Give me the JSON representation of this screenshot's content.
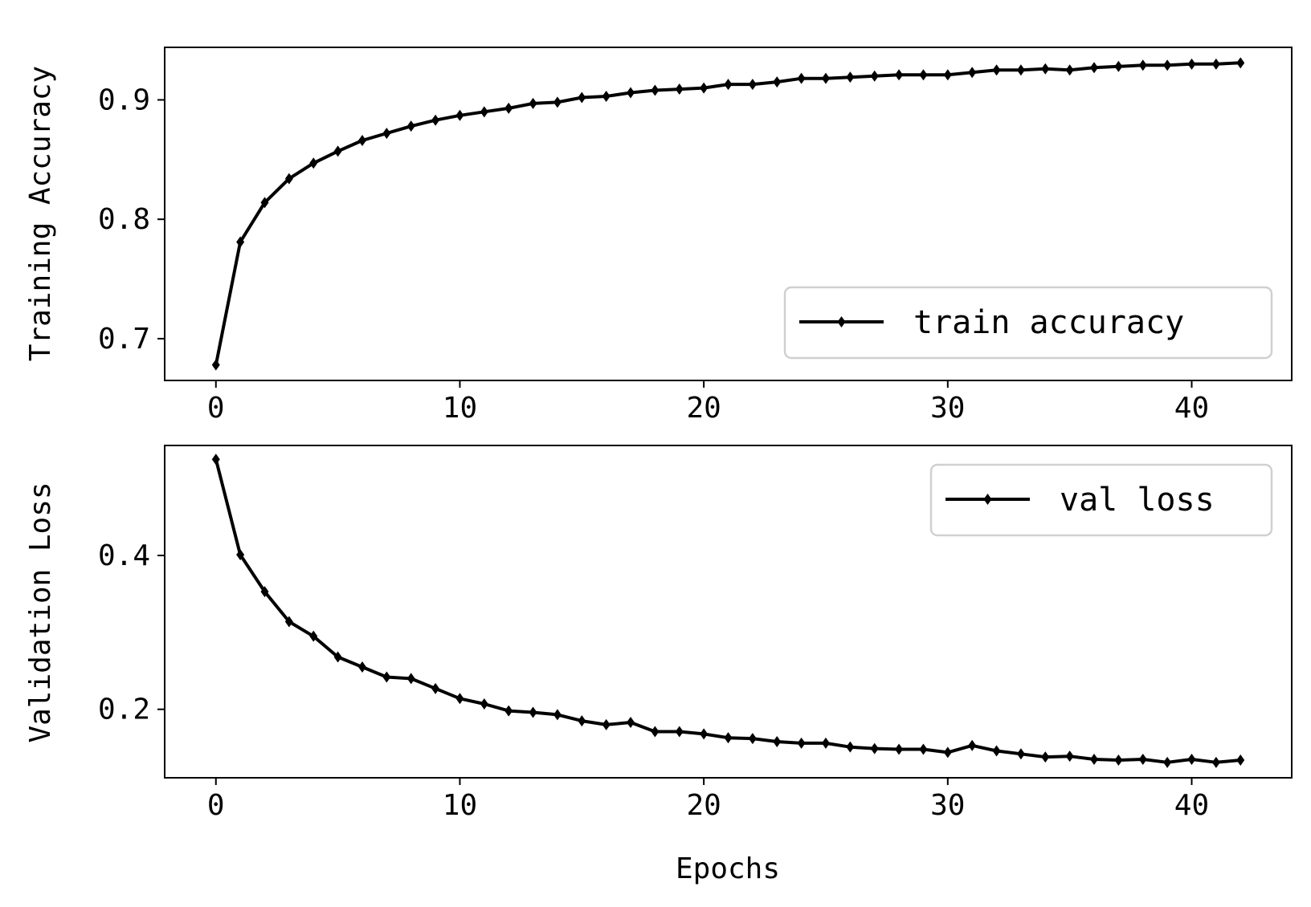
{
  "chart_data": [
    {
      "type": "line",
      "xlabel": "",
      "ylabel": "Training Accuracy",
      "xlim": [
        -2.1,
        44.1
      ],
      "ylim": [
        0.665,
        0.944
      ],
      "xticks": [
        0,
        10,
        20,
        30,
        40
      ],
      "xtick_labels": [
        "0",
        "10",
        "20",
        "30",
        "40"
      ],
      "yticks": [
        0.7,
        0.8,
        0.9
      ],
      "ytick_labels": [
        "0.7",
        "0.8",
        "0.9"
      ],
      "grid": false,
      "legend_position": "lower-right",
      "series": [
        {
          "name": "train accuracy",
          "color": "#000000",
          "marker": "diamond",
          "x": [
            0,
            1,
            2,
            3,
            4,
            5,
            6,
            7,
            8,
            9,
            10,
            11,
            12,
            13,
            14,
            15,
            16,
            17,
            18,
            19,
            20,
            21,
            22,
            23,
            24,
            25,
            26,
            27,
            28,
            29,
            30,
            31,
            32,
            33,
            34,
            35,
            36,
            37,
            38,
            39,
            40,
            41,
            42
          ],
          "y": [
            0.678,
            0.781,
            0.814,
            0.834,
            0.847,
            0.857,
            0.866,
            0.872,
            0.878,
            0.883,
            0.887,
            0.89,
            0.893,
            0.897,
            0.898,
            0.902,
            0.903,
            0.906,
            0.908,
            0.909,
            0.91,
            0.913,
            0.913,
            0.915,
            0.918,
            0.918,
            0.919,
            0.92,
            0.921,
            0.921,
            0.921,
            0.923,
            0.925,
            0.925,
            0.926,
            0.925,
            0.927,
            0.928,
            0.929,
            0.929,
            0.93,
            0.93,
            0.931
          ]
        }
      ]
    },
    {
      "type": "line",
      "xlabel": "Epochs",
      "ylabel": "Validation Loss",
      "xlim": [
        -2.1,
        44.1
      ],
      "ylim": [
        0.111,
        0.543
      ],
      "xticks": [
        0,
        10,
        20,
        30,
        40
      ],
      "xtick_labels": [
        "0",
        "10",
        "20",
        "30",
        "40"
      ],
      "yticks": [
        0.2,
        0.4
      ],
      "ytick_labels": [
        "0.2",
        "0.4"
      ],
      "grid": false,
      "legend_position": "upper-right",
      "series": [
        {
          "name": "val loss",
          "color": "#000000",
          "marker": "diamond",
          "x": [
            0,
            1,
            2,
            3,
            4,
            5,
            6,
            7,
            8,
            9,
            10,
            11,
            12,
            13,
            14,
            15,
            16,
            17,
            18,
            19,
            20,
            21,
            22,
            23,
            24,
            25,
            26,
            27,
            28,
            29,
            30,
            31,
            32,
            33,
            34,
            35,
            36,
            37,
            38,
            39,
            40,
            41,
            42
          ],
          "y": [
            0.525,
            0.401,
            0.353,
            0.314,
            0.295,
            0.268,
            0.255,
            0.242,
            0.24,
            0.227,
            0.214,
            0.207,
            0.198,
            0.196,
            0.193,
            0.185,
            0.18,
            0.183,
            0.171,
            0.171,
            0.168,
            0.163,
            0.162,
            0.158,
            0.156,
            0.156,
            0.151,
            0.149,
            0.148,
            0.148,
            0.144,
            0.153,
            0.146,
            0.142,
            0.138,
            0.139,
            0.135,
            0.134,
            0.135,
            0.131,
            0.135,
            0.131,
            0.134
          ]
        }
      ]
    }
  ]
}
